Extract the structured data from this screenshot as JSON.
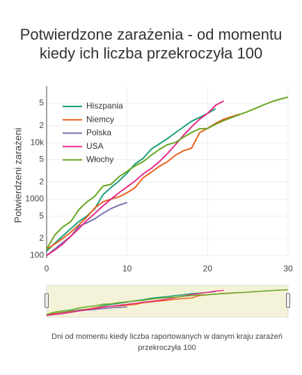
{
  "chart_data": {
    "type": "line",
    "title": "Potwierdzone zarażenia - od momentu kiedy ich liczba przekroczyła 100",
    "x_label": "Dni od momentu kiedy liczba raportowanych w danym kraju zarażeń przekroczyła 100",
    "y_label": "Potwierdzeni zarażeni",
    "log_y": true,
    "grid": true,
    "legend": "top-left",
    "range_slider": true,
    "x": [
      0,
      1,
      2,
      3,
      4,
      5,
      6,
      7,
      8,
      9,
      10,
      11,
      12,
      13,
      14,
      15,
      16,
      17,
      18,
      19,
      20,
      21,
      22,
      23,
      24,
      25,
      26,
      27,
      28,
      29,
      30
    ],
    "xlim": [
      0,
      30
    ],
    "xticks": [
      0,
      10,
      20,
      30
    ],
    "ylim": [
      90,
      100000
    ],
    "yticks": [
      100,
      {
        "value": 200,
        "label": "2"
      },
      {
        "value": 500,
        "label": "5"
      },
      1000,
      {
        "value": 2000,
        "label": "2"
      },
      {
        "value": 5000,
        "label": "5"
      },
      {
        "value": 10000,
        "label": "10k"
      },
      {
        "value": 20000,
        "label": "2"
      },
      {
        "value": 50000,
        "label": "5"
      }
    ],
    "series": [
      {
        "name": "Hiszpania",
        "color": "#1b9e77",
        "values": [
          120,
          165,
          222,
          300,
          400,
          500,
          680,
          1200,
          1600,
          2100,
          2900,
          4200,
          5300,
          7700,
          9500,
          11800,
          15000,
          19000,
          24000,
          28000,
          33000,
          40000,
          null,
          null,
          null,
          null,
          null,
          null,
          null,
          null,
          null
        ]
      },
      {
        "name": "Niemcy",
        "color": "#e8601c",
        "values": [
          130,
          160,
          200,
          260,
          350,
          480,
          700,
          900,
          1000,
          1100,
          1300,
          1600,
          2400,
          3000,
          3800,
          4600,
          6000,
          7200,
          8000,
          15000,
          18000,
          22000,
          26000,
          29000,
          32000,
          null,
          null,
          null,
          null,
          null,
          null
        ]
      },
      {
        "name": "Polska",
        "color": "#7570b3",
        "values": [
          100,
          130,
          170,
          220,
          330,
          380,
          450,
          560,
          680,
          780,
          870,
          null,
          null,
          null,
          null,
          null,
          null,
          null,
          null,
          null,
          null,
          null,
          null,
          null,
          null,
          null,
          null,
          null,
          null,
          null,
          null
        ]
      },
      {
        "name": "USA",
        "color": "#e7298a",
        "values": [
          100,
          125,
          160,
          220,
          300,
          420,
          560,
          760,
          1000,
          1300,
          1650,
          2100,
          2800,
          3500,
          4600,
          6400,
          9200,
          13500,
          19000,
          26000,
          33000,
          46000,
          55000,
          null,
          null,
          null,
          null,
          null,
          null,
          null,
          null
        ]
      },
      {
        "name": "Włochy",
        "color": "#66a61e",
        "values": [
          130,
          230,
          320,
          400,
          650,
          890,
          1130,
          1700,
          1830,
          2500,
          3100,
          3900,
          4600,
          6000,
          7600,
          9200,
          10100,
          12500,
          15100,
          17700,
          17800,
          21200,
          24700,
          27900,
          31500,
          35700,
          41000,
          47000,
          53600,
          59100,
          64000
        ]
      }
    ]
  }
}
